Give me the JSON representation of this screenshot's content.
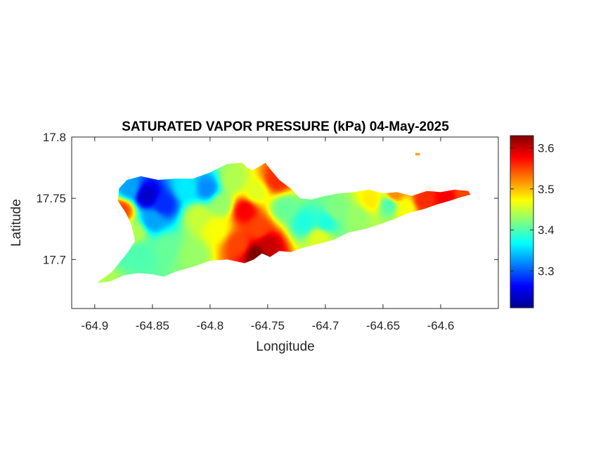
{
  "chart_data": {
    "type": "heatmap",
    "title": "SATURATED VAPOR PRESSURE (kPa) 04-May-2025",
    "xlabel": "Longitude",
    "ylabel": "Latitude",
    "xlim": [
      -64.92,
      -64.55
    ],
    "ylim": [
      17.66,
      17.8
    ],
    "x_ticks": [
      -64.9,
      -64.85,
      -64.8,
      -64.75,
      -64.7,
      -64.65,
      -64.6
    ],
    "x_tick_labels": [
      "-64.9",
      "-64.85",
      "-64.8",
      "-64.75",
      "-64.7",
      "-64.65",
      "-64.6"
    ],
    "y_ticks": [
      17.7,
      17.75,
      17.8
    ],
    "y_tick_labels": [
      "17.7",
      "17.75",
      "17.8"
    ],
    "colorbar": {
      "colormap": "jet",
      "range": [
        3.21,
        3.63
      ],
      "ticks": [
        3.3,
        3.4,
        3.5,
        3.6
      ],
      "tick_labels": [
        "3.3",
        "3.4",
        "3.5",
        "3.6"
      ]
    },
    "grid": false,
    "region_outline": [
      [
        -64.898,
        17.681
      ],
      [
        -64.885,
        17.69
      ],
      [
        -64.872,
        17.705
      ],
      [
        -64.865,
        17.715
      ],
      [
        -64.868,
        17.728
      ],
      [
        -64.873,
        17.738
      ],
      [
        -64.88,
        17.748
      ],
      [
        -64.879,
        17.758
      ],
      [
        -64.872,
        17.765
      ],
      [
        -64.86,
        17.768
      ],
      [
        -64.845,
        17.765
      ],
      [
        -64.83,
        17.766
      ],
      [
        -64.815,
        17.766
      ],
      [
        -64.8,
        17.771
      ],
      [
        -64.785,
        17.778
      ],
      [
        -64.772,
        17.779
      ],
      [
        -64.768,
        17.775
      ],
      [
        -64.763,
        17.773
      ],
      [
        -64.757,
        17.776
      ],
      [
        -64.752,
        17.779
      ],
      [
        -64.748,
        17.774
      ],
      [
        -64.74,
        17.765
      ],
      [
        -64.73,
        17.758
      ],
      [
        -64.722,
        17.75
      ],
      [
        -64.712,
        17.749
      ],
      [
        -64.7,
        17.752
      ],
      [
        -64.688,
        17.754
      ],
      [
        -64.675,
        17.755
      ],
      [
        -64.662,
        17.757
      ],
      [
        -64.65,
        17.754
      ],
      [
        -64.638,
        17.755
      ],
      [
        -64.625,
        17.752
      ],
      [
        -64.612,
        17.756
      ],
      [
        -64.6,
        17.755
      ],
      [
        -64.588,
        17.757
      ],
      [
        -64.576,
        17.756
      ],
      [
        -64.574,
        17.753
      ],
      [
        -64.582,
        17.751
      ],
      [
        -64.592,
        17.748
      ],
      [
        -64.603,
        17.745
      ],
      [
        -64.615,
        17.741
      ],
      [
        -64.628,
        17.738
      ],
      [
        -64.64,
        17.733
      ],
      [
        -64.652,
        17.729
      ],
      [
        -64.665,
        17.725
      ],
      [
        -64.68,
        17.722
      ],
      [
        -64.693,
        17.716
      ],
      [
        -64.705,
        17.713
      ],
      [
        -64.718,
        17.71
      ],
      [
        -64.73,
        17.706
      ],
      [
        -64.74,
        17.707
      ],
      [
        -64.748,
        17.702
      ],
      [
        -64.755,
        17.705
      ],
      [
        -64.762,
        17.7
      ],
      [
        -64.77,
        17.697
      ],
      [
        -64.785,
        17.7
      ],
      [
        -64.8,
        17.699
      ],
      [
        -64.815,
        17.694
      ],
      [
        -64.83,
        17.69
      ],
      [
        -64.84,
        17.686
      ],
      [
        -64.85,
        17.688
      ],
      [
        -64.862,
        17.689
      ],
      [
        -64.875,
        17.687
      ],
      [
        -64.887,
        17.682
      ]
    ],
    "islet": [
      [
        -64.622,
        17.787
      ],
      [
        -64.618,
        17.787
      ],
      [
        -64.618,
        17.785
      ],
      [
        -64.622,
        17.785
      ]
    ],
    "field_anchors": [
      {
        "lon": -64.855,
        "lat": 17.752,
        "value": 3.24
      },
      {
        "lon": -64.84,
        "lat": 17.745,
        "value": 3.28
      },
      {
        "lon": -64.87,
        "lat": 17.758,
        "value": 3.33
      },
      {
        "lon": -64.85,
        "lat": 17.732,
        "value": 3.33
      },
      {
        "lon": -64.803,
        "lat": 17.758,
        "value": 3.32
      },
      {
        "lon": -64.82,
        "lat": 17.758,
        "value": 3.36
      },
      {
        "lon": -64.88,
        "lat": 17.712,
        "value": 3.39
      },
      {
        "lon": -64.86,
        "lat": 17.705,
        "value": 3.4
      },
      {
        "lon": -64.838,
        "lat": 17.71,
        "value": 3.41
      },
      {
        "lon": -64.815,
        "lat": 17.705,
        "value": 3.43
      },
      {
        "lon": -64.81,
        "lat": 17.735,
        "value": 3.45
      },
      {
        "lon": -64.79,
        "lat": 17.745,
        "value": 3.43
      },
      {
        "lon": -64.795,
        "lat": 17.725,
        "value": 3.47
      },
      {
        "lon": -64.78,
        "lat": 17.765,
        "value": 3.44
      },
      {
        "lon": -64.76,
        "lat": 17.755,
        "value": 3.46
      },
      {
        "lon": -64.77,
        "lat": 17.74,
        "value": 3.58
      },
      {
        "lon": -64.758,
        "lat": 17.725,
        "value": 3.55
      },
      {
        "lon": -64.75,
        "lat": 17.712,
        "value": 3.6
      },
      {
        "lon": -64.76,
        "lat": 17.704,
        "value": 3.63
      },
      {
        "lon": -64.775,
        "lat": 17.712,
        "value": 3.55
      },
      {
        "lon": -64.742,
        "lat": 17.765,
        "value": 3.56
      },
      {
        "lon": -64.735,
        "lat": 17.742,
        "value": 3.41
      },
      {
        "lon": -64.718,
        "lat": 17.73,
        "value": 3.38
      },
      {
        "lon": -64.7,
        "lat": 17.73,
        "value": 3.38
      },
      {
        "lon": -64.705,
        "lat": 17.718,
        "value": 3.46
      },
      {
        "lon": -64.69,
        "lat": 17.74,
        "value": 3.42
      },
      {
        "lon": -64.672,
        "lat": 17.735,
        "value": 3.43
      },
      {
        "lon": -64.66,
        "lat": 17.748,
        "value": 3.48
      },
      {
        "lon": -64.645,
        "lat": 17.745,
        "value": 3.4
      },
      {
        "lon": -64.63,
        "lat": 17.742,
        "value": 3.47
      },
      {
        "lon": -64.64,
        "lat": 17.753,
        "value": 3.52
      },
      {
        "lon": -64.615,
        "lat": 17.748,
        "value": 3.56
      },
      {
        "lon": -64.595,
        "lat": 17.75,
        "value": 3.58
      },
      {
        "lon": -64.58,
        "lat": 17.754,
        "value": 3.55
      },
      {
        "lon": -64.895,
        "lat": 17.684,
        "value": 3.44
      },
      {
        "lon": -64.877,
        "lat": 17.74,
        "value": 3.55
      },
      {
        "lon": -64.865,
        "lat": 17.722,
        "value": 3.44
      }
    ]
  }
}
